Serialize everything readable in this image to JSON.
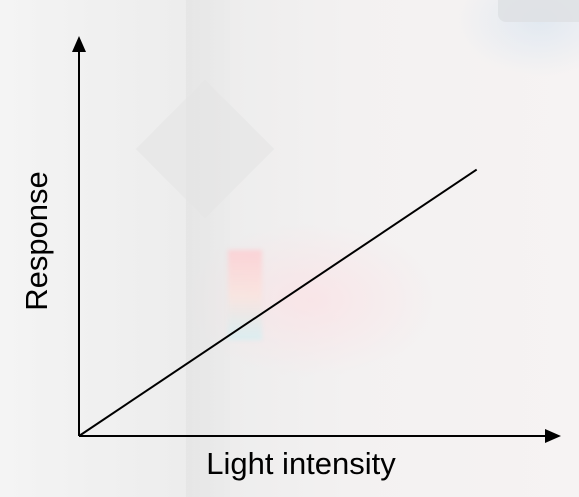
{
  "chart_data": {
    "type": "line",
    "xlabel": "Light intensity",
    "ylabel": "Response",
    "xlim": [
      0,
      1
    ],
    "ylim": [
      0,
      1
    ],
    "grid": false,
    "series": [
      {
        "x": [
          0,
          0.91
        ],
        "y": [
          0,
          0.74
        ]
      }
    ],
    "colors": {
      "axis": "#000000",
      "line": "#000000"
    }
  }
}
